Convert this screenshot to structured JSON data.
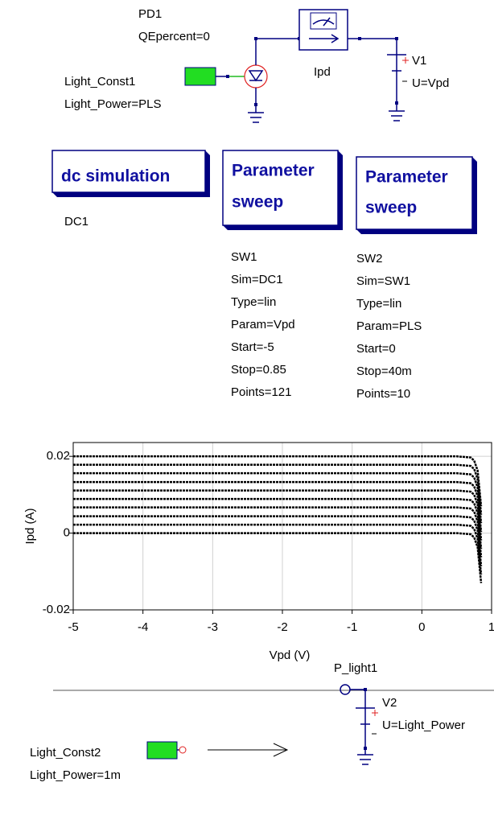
{
  "schematic": {
    "pd1": [
      "PD1",
      "QEpercent=0"
    ],
    "light_const1": [
      "Light_Const1",
      "Light_Power=PLS"
    ],
    "probe": [
      "Ipd"
    ],
    "v1": [
      "V1",
      "U=Vpd"
    ],
    "dc": {
      "title": "dc simulation",
      "params": [
        "DC1"
      ]
    },
    "sw1": {
      "title": [
        "Parameter",
        "sweep"
      ],
      "params": [
        "SW1",
        "Sim=DC1",
        "Type=lin",
        "Param=Vpd",
        "Start=-5",
        "Stop=0.85",
        "Points=121"
      ]
    },
    "sw2": {
      "title": [
        "Parameter",
        "sweep"
      ],
      "params": [
        "SW2",
        "Sim=SW1",
        "Type=lin",
        "Param=PLS",
        "Start=0",
        "Stop=40m",
        "Points=10"
      ]
    },
    "p_light1": [
      "P_light1"
    ],
    "v2": [
      "V2",
      "U=Light_Power"
    ],
    "light_const2": [
      "Light_Const2",
      "Light_Power=1m"
    ]
  },
  "chart_data": {
    "type": "line",
    "x_label": "Vpd (V)",
    "y_label": "Ipd (A)",
    "x": [
      -5,
      0.5,
      0.7,
      0.75,
      0.8,
      0.85
    ],
    "series": [
      {
        "color": "#000000",
        "values": [
          0,
          0,
          -0.0003,
          -0.0011,
          -0.0037,
          -0.013
        ]
      },
      {
        "color": "#000000",
        "values": [
          0.0022,
          0.0022,
          0.0019,
          0.0011,
          -0.0015,
          -0.0108
        ]
      },
      {
        "color": "#000000",
        "values": [
          0.0044,
          0.0044,
          0.0041,
          0.0033,
          0.0007,
          -0.0086
        ]
      },
      {
        "color": "#000000",
        "values": [
          0.0067,
          0.0067,
          0.0064,
          0.0056,
          0.003,
          -0.0063
        ]
      },
      {
        "color": "#000000",
        "values": [
          0.0089,
          0.0089,
          0.0086,
          0.0078,
          0.0052,
          -0.0041
        ]
      },
      {
        "color": "#000000",
        "values": [
          0.0111,
          0.0111,
          0.0108,
          0.01,
          0.0074,
          -0.0019
        ]
      },
      {
        "color": "#000000",
        "values": [
          0.0133,
          0.0133,
          0.013,
          0.0122,
          0.0096,
          0.0003
        ]
      },
      {
        "color": "#000000",
        "values": [
          0.0156,
          0.0156,
          0.0153,
          0.0145,
          0.0119,
          0.0026
        ]
      },
      {
        "color": "#000000",
        "values": [
          0.0178,
          0.0178,
          0.0175,
          0.0167,
          0.0141,
          0.0048
        ]
      },
      {
        "color": "#000000",
        "values": [
          0.02,
          0.02,
          0.0197,
          0.0189,
          0.0163,
          0.007
        ]
      }
    ],
    "xlim": [
      -5,
      1
    ],
    "xticks": [
      -5,
      -4,
      -3,
      -2,
      -1,
      0,
      1
    ],
    "ylim": [
      -0.02,
      0.0236
    ],
    "yticks": [
      -0.02,
      0,
      0.02
    ],
    "grid": true
  }
}
